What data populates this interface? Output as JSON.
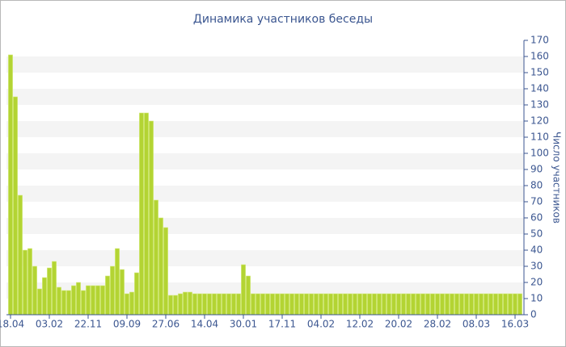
{
  "chart_data": {
    "type": "bar",
    "title": "Динамика участников беседы",
    "y_label": "Число участников",
    "categories": [
      "18.04",
      null,
      null,
      null,
      null,
      null,
      null,
      null,
      "03.02",
      null,
      null,
      null,
      null,
      null,
      null,
      null,
      "22.11",
      null,
      null,
      null,
      null,
      null,
      null,
      null,
      "09.09",
      null,
      null,
      null,
      null,
      null,
      null,
      null,
      "27.06",
      null,
      null,
      null,
      null,
      null,
      null,
      null,
      "14.04",
      null,
      null,
      null,
      null,
      null,
      null,
      null,
      "30.01",
      null,
      null,
      null,
      null,
      null,
      null,
      null,
      "17.11",
      null,
      null,
      null,
      null,
      null,
      null,
      null,
      "04.02",
      null,
      null,
      null,
      null,
      null,
      null,
      null,
      "12.02",
      null,
      null,
      null,
      null,
      null,
      null,
      null,
      "20.02",
      null,
      null,
      null,
      null,
      null,
      null,
      null,
      "28.02",
      null,
      null,
      null,
      null,
      null,
      null,
      null,
      "08.03",
      null,
      null,
      null,
      null,
      null,
      null,
      null,
      "16.03",
      null
    ],
    "values": [
      161,
      135,
      74,
      40,
      41,
      30,
      16,
      23,
      29,
      33,
      17,
      15,
      15,
      18,
      20,
      15,
      18,
      18,
      18,
      18,
      24,
      30,
      41,
      28,
      13,
      14,
      26,
      125,
      125,
      120,
      71,
      60,
      54,
      12,
      12,
      13,
      14,
      14,
      13,
      13,
      13,
      13,
      13,
      13,
      13,
      13,
      13,
      13,
      31,
      24,
      13,
      13,
      13,
      13,
      13,
      13,
      13,
      13,
      13,
      13,
      13,
      13,
      13,
      13,
      13,
      13,
      13,
      13,
      13,
      13,
      13,
      13,
      13,
      13,
      13,
      13,
      13,
      13,
      13,
      13,
      13,
      13,
      13,
      13,
      13,
      13,
      13,
      13,
      13,
      13,
      13,
      13,
      13,
      13,
      13,
      13,
      13,
      13,
      13,
      13,
      13,
      13,
      13,
      13,
      13,
      13
    ],
    "color": "#b3d433",
    "ylim": [
      0,
      170
    ],
    "yticks": [
      0,
      10,
      20,
      30,
      40,
      50,
      60,
      70,
      80,
      90,
      100,
      110,
      120,
      130,
      140,
      150,
      160,
      170
    ],
    "grid": true
  }
}
